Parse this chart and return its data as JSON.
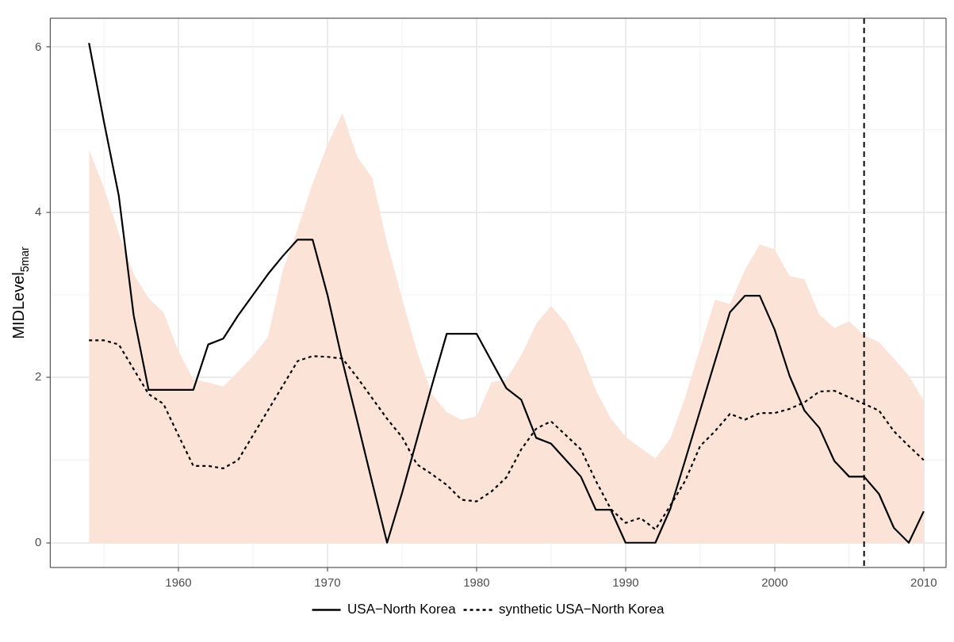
{
  "chart_data": {
    "type": "line",
    "ylabel": "MIDLevel$_{5mar}$",
    "x": [
      1954,
      1955,
      1956,
      1957,
      1958,
      1959,
      1960,
      1961,
      1962,
      1963,
      1964,
      1965,
      1966,
      1967,
      1968,
      1969,
      1970,
      1971,
      1972,
      1973,
      1974,
      1975,
      1976,
      1977,
      1978,
      1979,
      1980,
      1981,
      1982,
      1983,
      1984,
      1985,
      1986,
      1987,
      1988,
      1989,
      1990,
      1991,
      1992,
      1993,
      1994,
      1995,
      1996,
      1997,
      1998,
      1999,
      2000,
      2001,
      2002,
      2003,
      2004,
      2005,
      2006,
      2007,
      2008,
      2009,
      2010
    ],
    "series": [
      {
        "type": "area",
        "color": "#fbe3d8",
        "values": [
          4.76,
          4.3,
          3.75,
          3.25,
          2.96,
          2.79,
          2.32,
          1.98,
          1.94,
          1.89,
          2.07,
          2.26,
          2.49,
          3.3,
          3.8,
          4.35,
          4.82,
          5.2,
          4.67,
          4.42,
          3.63,
          2.96,
          2.32,
          1.8,
          1.58,
          1.49,
          1.53,
          1.94,
          1.98,
          2.27,
          2.65,
          2.87,
          2.66,
          2.32,
          1.85,
          1.51,
          1.28,
          1.15,
          1.02,
          1.26,
          1.76,
          2.36,
          2.94,
          2.89,
          3.3,
          3.61,
          3.55,
          3.23,
          3.19,
          2.76,
          2.6,
          2.68,
          2.51,
          2.43,
          2.23,
          2.02,
          1.72
        ]
      },
      {
        "type": "line",
        "name": "USA−North Korea",
        "color": "#000000",
        "line_style": "solid",
        "values": [
          6.05,
          5.1,
          4.2,
          2.75,
          1.85,
          1.85,
          1.85,
          1.85,
          2.4,
          2.47,
          2.75,
          3.0,
          3.25,
          3.47,
          3.67,
          3.67,
          3.0,
          2.2,
          1.47,
          0.73,
          0,
          0.6,
          1.25,
          1.9,
          2.53,
          2.53,
          2.53,
          2.2,
          1.87,
          1.73,
          1.27,
          1.2,
          1.0,
          0.8,
          0.4,
          0.4,
          0,
          0,
          0,
          0.41,
          1.0,
          1.6,
          2.2,
          2.79,
          2.99,
          2.99,
          2.58,
          2.02,
          1.6,
          1.39,
          0.99,
          0.8,
          0.8,
          0.59,
          0.18,
          0,
          0.38
        ]
      },
      {
        "type": "line",
        "name": "synthetic USA−North Korea",
        "color": "#000000",
        "line_style": "dotted",
        "values": [
          2.45,
          2.45,
          2.4,
          2.1,
          1.8,
          1.68,
          1.3,
          0.93,
          0.93,
          0.9,
          1.0,
          1.3,
          1.6,
          1.9,
          2.2,
          2.26,
          2.25,
          2.23,
          2.0,
          1.75,
          1.5,
          1.28,
          0.95,
          0.83,
          0.7,
          0.52,
          0.5,
          0.62,
          0.79,
          1.13,
          1.38,
          1.47,
          1.3,
          1.13,
          0.75,
          0.41,
          0.24,
          0.3,
          0.16,
          0.45,
          0.75,
          1.17,
          1.35,
          1.56,
          1.49,
          1.57,
          1.57,
          1.62,
          1.7,
          1.83,
          1.84,
          1.76,
          1.68,
          1.6,
          1.35,
          1.17,
          1.0
        ]
      }
    ],
    "xlim": [
      1951.4,
      2011.5
    ],
    "xticks": [
      1960,
      1970,
      1980,
      1990,
      2000,
      2010
    ],
    "ylim": [
      -0.3,
      6.35
    ],
    "yticks": [
      0,
      2,
      4,
      6
    ],
    "ref_lines": [
      {
        "axis": "x",
        "value": 2006,
        "color": "#000000",
        "line_style": "dashed"
      }
    ],
    "grid": true,
    "legend": "bottom"
  }
}
